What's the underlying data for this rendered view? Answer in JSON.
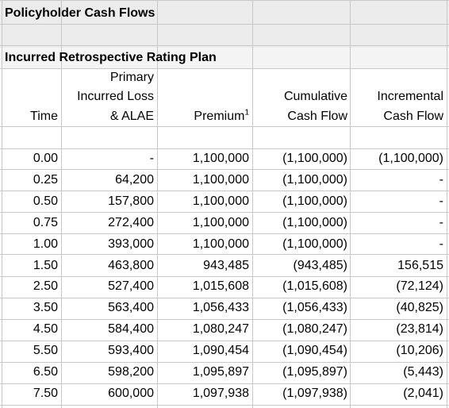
{
  "sheet_title": "Policyholder Cash Flows",
  "section_title": "Incurred Retrospective Rating Plan",
  "headers": {
    "time": "Time",
    "loss_line1": "Primary",
    "loss_line2": "Incurred Loss",
    "loss_line3": "& ALAE",
    "premium": "Premium",
    "premium_footnote": "1",
    "cum_line1": "Cumulative",
    "cum_line2": "Cash Flow",
    "inc_line1": "Incremental",
    "inc_line2": "Cash Flow"
  },
  "rows": [
    {
      "time": "0.00",
      "loss": "-",
      "premium": "1,100,000",
      "cumulative": "(1,100,000)",
      "incremental": "(1,100,000)"
    },
    {
      "time": "0.25",
      "loss": "64,200",
      "premium": "1,100,000",
      "cumulative": "(1,100,000)",
      "incremental": "-"
    },
    {
      "time": "0.50",
      "loss": "157,800",
      "premium": "1,100,000",
      "cumulative": "(1,100,000)",
      "incremental": "-"
    },
    {
      "time": "0.75",
      "loss": "272,400",
      "premium": "1,100,000",
      "cumulative": "(1,100,000)",
      "incremental": "-"
    },
    {
      "time": "1.00",
      "loss": "393,000",
      "premium": "1,100,000",
      "cumulative": "(1,100,000)",
      "incremental": "-"
    },
    {
      "time": "1.50",
      "loss": "463,800",
      "premium": "943,485",
      "cumulative": "(943,485)",
      "incremental": "156,515"
    },
    {
      "time": "2.50",
      "loss": "527,400",
      "premium": "1,015,608",
      "cumulative": "(1,015,608)",
      "incremental": "(72,124)"
    },
    {
      "time": "3.50",
      "loss": "563,400",
      "premium": "1,056,433",
      "cumulative": "(1,056,433)",
      "incremental": "(40,825)"
    },
    {
      "time": "4.50",
      "loss": "584,400",
      "premium": "1,080,247",
      "cumulative": "(1,080,247)",
      "incremental": "(23,814)"
    },
    {
      "time": "5.50",
      "loss": "593,400",
      "premium": "1,090,454",
      "cumulative": "(1,090,454)",
      "incremental": "(10,206)"
    },
    {
      "time": "6.50",
      "loss": "598,200",
      "premium": "1,095,897",
      "cumulative": "(1,095,897)",
      "incremental": "(5,443)"
    },
    {
      "time": "7.50",
      "loss": "600,000",
      "premium": "1,097,938",
      "cumulative": "(1,097,938)",
      "incremental": "(2,041)"
    }
  ]
}
